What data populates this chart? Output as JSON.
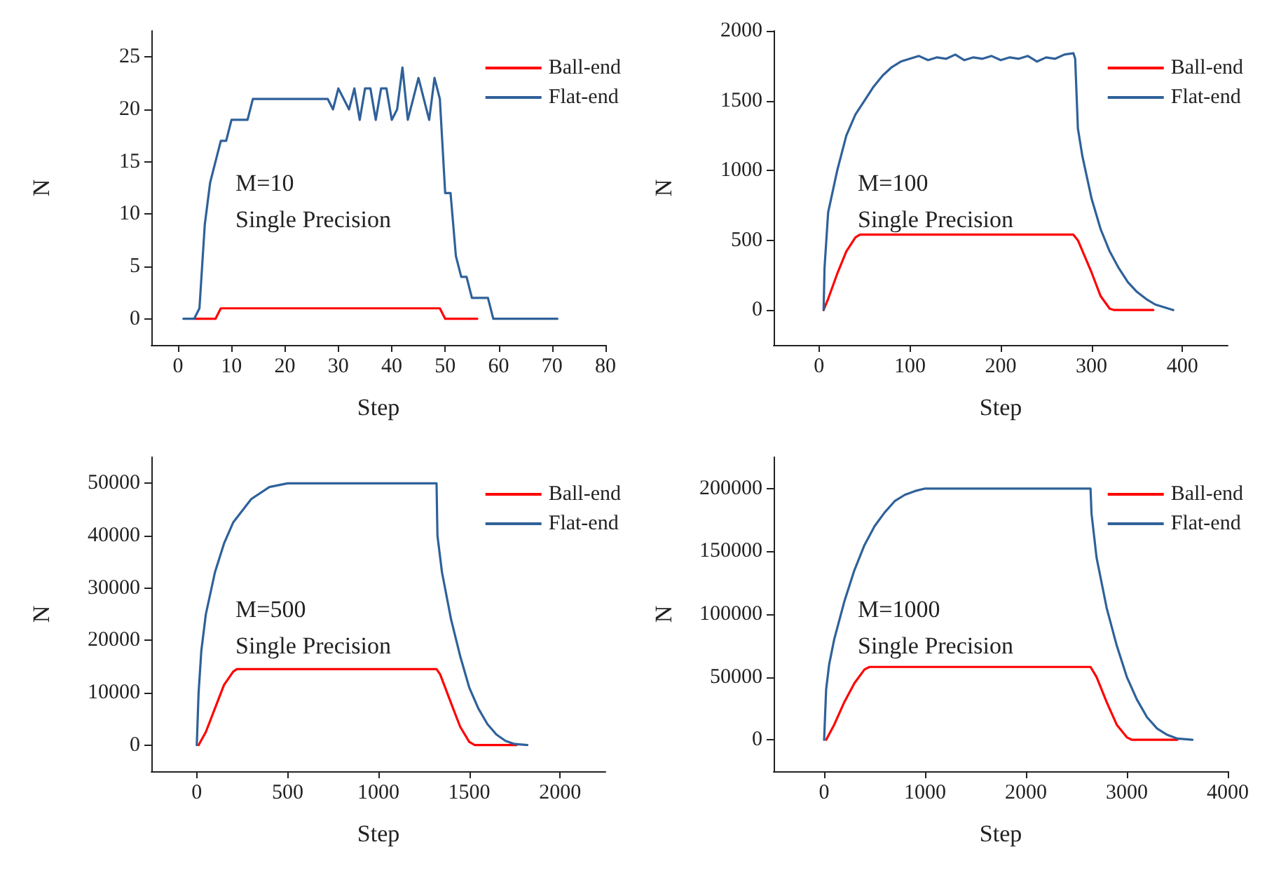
{
  "chart_data": [
    {
      "type": "line",
      "xlabel": "Step",
      "ylabel": "N",
      "annotations": [
        "M=10",
        "Single Precision"
      ],
      "xlim": [
        -5,
        80
      ],
      "xticks": [
        0,
        10,
        20,
        30,
        40,
        50,
        60,
        70,
        80
      ],
      "ylim": [
        -2.5,
        27.5
      ],
      "yticks": [
        0,
        5,
        10,
        15,
        20,
        25
      ],
      "legend": "top right",
      "grid": false,
      "series": [
        {
          "name": "Ball-end",
          "color": "#ff0000",
          "x": [
            3,
            7,
            8,
            49,
            50,
            56
          ],
          "values": [
            0,
            0,
            1,
            1,
            0,
            0
          ]
        },
        {
          "name": "Flat-end",
          "color": "#2f6199",
          "x": [
            1,
            2,
            3,
            4,
            5,
            6,
            7,
            8,
            9,
            10,
            11,
            12,
            13,
            14,
            28,
            29,
            30,
            31,
            32,
            33,
            34,
            35,
            36,
            37,
            38,
            39,
            40,
            41,
            42,
            43,
            44,
            45,
            46,
            47,
            48,
            49,
            50,
            51,
            52,
            53,
            54,
            55,
            56,
            57,
            58,
            59,
            71
          ],
          "values": [
            0,
            0,
            0,
            1,
            9,
            13,
            15,
            17,
            17,
            19,
            19,
            19,
            19,
            21,
            21,
            20,
            22,
            21,
            20,
            22,
            19,
            22,
            22,
            19,
            22,
            22,
            19,
            20,
            24,
            19,
            21,
            23,
            21,
            19,
            23,
            21,
            12,
            12,
            6,
            4,
            4,
            2,
            2,
            2,
            2,
            0,
            0
          ]
        }
      ]
    },
    {
      "type": "line",
      "xlabel": "Step",
      "ylabel": "N",
      "annotations": [
        "M=100",
        "Single Precision"
      ],
      "xlim": [
        -50,
        450
      ],
      "xticks": [
        0,
        100,
        200,
        300,
        400
      ],
      "ylim": [
        -250,
        2000
      ],
      "yticks": [
        0,
        500,
        1000,
        1500,
        2000
      ],
      "legend": "top right",
      "grid": false,
      "series": [
        {
          "name": "Ball-end",
          "color": "#ff0000",
          "x": [
            5,
            10,
            20,
            30,
            40,
            45,
            280,
            285,
            300,
            310,
            320,
            325,
            368
          ],
          "values": [
            0,
            80,
            260,
            420,
            520,
            540,
            540,
            500,
            270,
            100,
            10,
            0,
            0
          ]
        },
        {
          "name": "Flat-end",
          "color": "#2f6199",
          "x": [
            5,
            6,
            10,
            20,
            30,
            40,
            50,
            60,
            70,
            80,
            90,
            100,
            110,
            120,
            130,
            140,
            150,
            160,
            170,
            180,
            190,
            200,
            210,
            220,
            230,
            240,
            250,
            260,
            270,
            280,
            282,
            285,
            290,
            300,
            310,
            320,
            330,
            340,
            350,
            360,
            370,
            380,
            390
          ],
          "values": [
            0,
            300,
            700,
            1000,
            1250,
            1400,
            1500,
            1600,
            1680,
            1740,
            1780,
            1800,
            1820,
            1790,
            1810,
            1800,
            1830,
            1790,
            1810,
            1800,
            1820,
            1790,
            1810,
            1800,
            1820,
            1780,
            1810,
            1800,
            1830,
            1840,
            1800,
            1300,
            1100,
            800,
            580,
            420,
            300,
            200,
            130,
            80,
            40,
            20,
            0
          ]
        }
      ]
    },
    {
      "type": "line",
      "xlabel": "Step",
      "ylabel": "N",
      "annotations": [
        "M=500",
        "Single Precision"
      ],
      "xlim": [
        -250,
        2250
      ],
      "xticks": [
        0,
        500,
        1000,
        1500,
        2000
      ],
      "ylim": [
        -5000,
        55000
      ],
      "yticks": [
        0,
        10000,
        20000,
        30000,
        40000,
        50000
      ],
      "legend": "top right",
      "grid": false,
      "series": [
        {
          "name": "Ball-end",
          "color": "#ff0000",
          "x": [
            10,
            50,
            100,
            150,
            200,
            220,
            1320,
            1340,
            1400,
            1450,
            1500,
            1530,
            1760
          ],
          "values": [
            0,
            2500,
            7000,
            11500,
            14000,
            14500,
            14500,
            13500,
            8000,
            3500,
            600,
            0,
            0
          ]
        },
        {
          "name": "Flat-end",
          "color": "#2f6199",
          "x": [
            0,
            10,
            25,
            50,
            100,
            150,
            200,
            300,
            400,
            500,
            1320,
            1325,
            1350,
            1400,
            1450,
            1500,
            1550,
            1600,
            1650,
            1700,
            1750,
            1820
          ],
          "values": [
            0,
            10000,
            18000,
            25000,
            33000,
            38500,
            42500,
            47000,
            49300,
            50000,
            50000,
            40000,
            33000,
            24000,
            17000,
            11000,
            7000,
            4000,
            2000,
            800,
            200,
            0
          ]
        }
      ]
    },
    {
      "type": "line",
      "xlabel": "Step",
      "ylabel": "N",
      "annotations": [
        "M=1000",
        "Single Precision"
      ],
      "xlim": [
        -500,
        4000
      ],
      "xticks": [
        0,
        1000,
        2000,
        3000,
        4000
      ],
      "ylim": [
        -25000,
        225000
      ],
      "yticks": [
        0,
        50000,
        100000,
        150000,
        200000
      ],
      "legend": "top right",
      "grid": false,
      "series": [
        {
          "name": "Ball-end",
          "color": "#ff0000",
          "x": [
            20,
            100,
            200,
            300,
            400,
            450,
            2640,
            2700,
            2800,
            2900,
            3000,
            3050,
            3500
          ],
          "values": [
            0,
            12000,
            30000,
            45000,
            56000,
            58000,
            58000,
            50000,
            30000,
            12000,
            2000,
            0,
            0
          ]
        },
        {
          "name": "Flat-end",
          "color": "#2f6199",
          "x": [
            0,
            20,
            50,
            100,
            200,
            300,
            400,
            500,
            600,
            700,
            800,
            900,
            1000,
            2640,
            2650,
            2700,
            2800,
            2900,
            3000,
            3100,
            3200,
            3300,
            3400,
            3500,
            3650
          ],
          "values": [
            0,
            40000,
            60000,
            80000,
            110000,
            135000,
            155000,
            170000,
            181000,
            190000,
            195000,
            198000,
            200000,
            200000,
            180000,
            145000,
            105000,
            75000,
            50000,
            32000,
            18000,
            9000,
            4000,
            1000,
            0
          ]
        }
      ]
    }
  ]
}
